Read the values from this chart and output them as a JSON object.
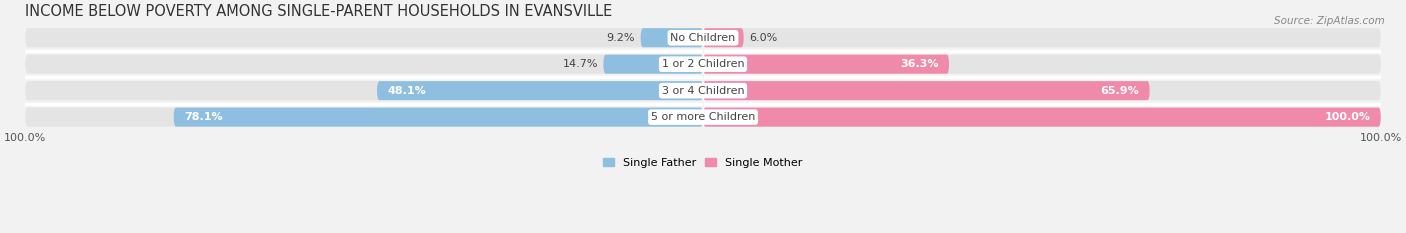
{
  "title": "INCOME BELOW POVERTY AMONG SINGLE-PARENT HOUSEHOLDS IN EVANSVILLE",
  "source": "Source: ZipAtlas.com",
  "categories": [
    "No Children",
    "1 or 2 Children",
    "3 or 4 Children",
    "5 or more Children"
  ],
  "single_father": [
    9.2,
    14.7,
    48.1,
    78.1
  ],
  "single_mother": [
    6.0,
    36.3,
    65.9,
    100.0
  ],
  "father_color": "#8fbfe0",
  "mother_color": "#f08aaa",
  "background_color": "#f2f2f2",
  "bar_bg_color": "#e4e4e4",
  "row_sep_color": "#ffffff",
  "title_fontsize": 10.5,
  "source_fontsize": 7.5,
  "label_fontsize": 8,
  "cat_fontsize": 8,
  "xlim": [
    -100,
    100
  ],
  "x_tick_labels": [
    "100.0%",
    "100.0%"
  ]
}
